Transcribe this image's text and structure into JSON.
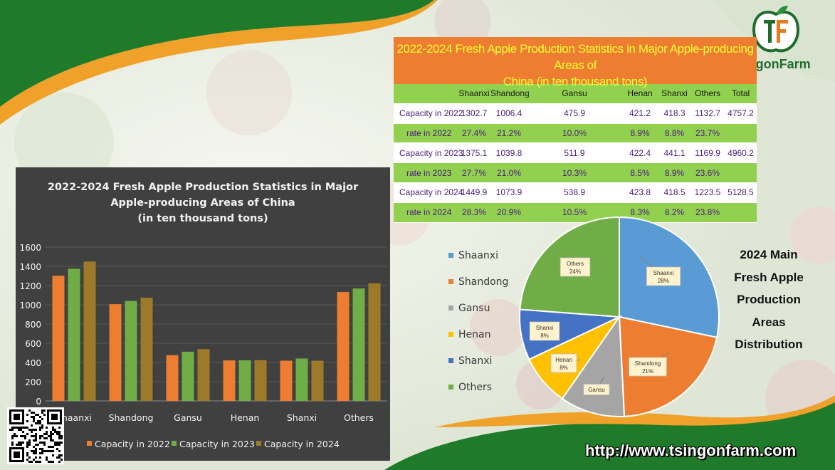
{
  "table": {
    "title_line1": "2022-2024 Fresh Apple Production Statistics in Major Apple-producing Areas of",
    "title_line2": "China  (in ten thousand tons)",
    "headers": [
      "",
      "Shaanxi",
      "Shandong",
      "Gansu",
      "Henan",
      "Shanxi",
      "Others",
      "Total"
    ],
    "rows": [
      {
        "label": "Capacity in 2022",
        "type": "cap",
        "values": [
          "1302.7",
          "1006.4",
          "475.9",
          "421.2",
          "418.3",
          "1132.7",
          "4757.2"
        ]
      },
      {
        "label": "rate in 2022",
        "type": "rate",
        "values": [
          "27.4%",
          "21.2%",
          "10.0%",
          "8.9%",
          "8.8%",
          "23.7%",
          ""
        ]
      },
      {
        "label": "Capacity in 2023",
        "type": "cap",
        "values": [
          "1375.1",
          "1039.8",
          "511.9",
          "422.4",
          "441.1",
          "1169.9",
          "4960.2"
        ]
      },
      {
        "label": "rate in 2023",
        "type": "rate",
        "values": [
          "27.7%",
          "21.0%",
          "10.3%",
          "8.5%",
          "8.9%",
          "23.6%",
          ""
        ]
      },
      {
        "label": "Capacity in 2024",
        "type": "cap",
        "values": [
          "1449.9",
          "1073.9",
          "538.9",
          "423.8",
          "418.5",
          "1223.5",
          "5128.5"
        ]
      },
      {
        "label": "rate in 2024",
        "type": "rate",
        "values": [
          "28.3%",
          "20.9%",
          "10.5%",
          "8.3%",
          "8.2%",
          "23.8%",
          ""
        ]
      }
    ]
  },
  "chart_data": [
    {
      "type": "bar",
      "title": [
        "2022-2024 Fresh Apple Production Statistics in Major",
        "Apple-producing Areas of China",
        "(in ten thousand tons)"
      ],
      "categories": [
        "Shaanxi",
        "Shandong",
        "Gansu",
        "Henan",
        "Shanxi",
        "Others"
      ],
      "series": [
        {
          "name": "Capacity in 2022",
          "color": "#ed7d31",
          "values": [
            1302.7,
            1006.4,
            475.9,
            421.2,
            418.3,
            1132.7
          ]
        },
        {
          "name": "Capacity in 2023",
          "color": "#70ad47",
          "values": [
            1375.1,
            1039.8,
            511.9,
            422.4,
            441.1,
            1169.9
          ]
        },
        {
          "name": "Capacity in 2024",
          "color": "#9c7a2a",
          "values": [
            1449.9,
            1073.9,
            538.9,
            423.8,
            418.5,
            1223.5
          ]
        }
      ],
      "ylim": [
        0,
        1600
      ],
      "yticks": [
        "0",
        "200",
        "400",
        "600",
        "800",
        "1000",
        "1200",
        "1400",
        "1600"
      ],
      "legend": "bottom"
    },
    {
      "type": "pie",
      "title": "2024 Main Fresh Apple Production Areas Distribution",
      "title_lines": [
        "2024 Main",
        "Fresh Apple",
        "Production",
        "Areas",
        "Distribution"
      ],
      "labels": [
        "Shaanxi",
        "Shandong",
        "Gansu",
        "Henan",
        "Shanxi",
        "Others"
      ],
      "values": [
        28.3,
        20.9,
        10.5,
        8.3,
        8.2,
        23.8
      ],
      "percent_labels": [
        "28%",
        "21%",
        "",
        "8%",
        "8%",
        "24%"
      ],
      "colors": [
        "#5b9bd5",
        "#ed7d31",
        "#a5a5a5",
        "#ffc000",
        "#4472c4",
        "#70ad47"
      ],
      "legend": "left"
    }
  ],
  "brand": {
    "name": "TsingonFarm",
    "url": "http://www.tsingonfarm.com"
  }
}
